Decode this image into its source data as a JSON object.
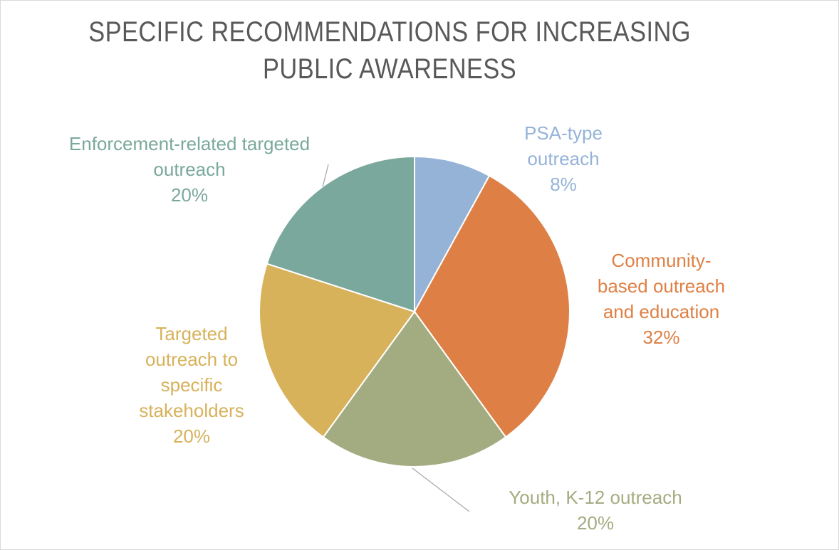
{
  "chart_data": {
    "type": "pie",
    "title": [
      "SPECIFIC RECOMMENDATIONS FOR INCREASING",
      "PUBLIC AWARENESS"
    ],
    "slices": [
      {
        "label_lines": [
          "PSA-type",
          "outreach"
        ],
        "percent_label": "8%",
        "value": 8,
        "color": "#95b3d7"
      },
      {
        "label_lines": [
          "Community-",
          "based outreach",
          "and education"
        ],
        "percent_label": "32%",
        "value": 32,
        "color": "#de8045"
      },
      {
        "label_lines": [
          "Youth, K-12 outreach"
        ],
        "percent_label": "20%",
        "value": 20,
        "color": "#a3ac80"
      },
      {
        "label_lines": [
          "Targeted",
          "outreach to",
          "specific",
          "stakeholders"
        ],
        "percent_label": "20%",
        "value": 20,
        "color": "#d7b25b"
      },
      {
        "label_lines": [
          "Enforcement-related targeted",
          "outreach"
        ],
        "percent_label": "20%",
        "value": 20,
        "color": "#7aa89c"
      }
    ],
    "start_angle": "12 o'clock, clockwise",
    "legend": "none"
  }
}
